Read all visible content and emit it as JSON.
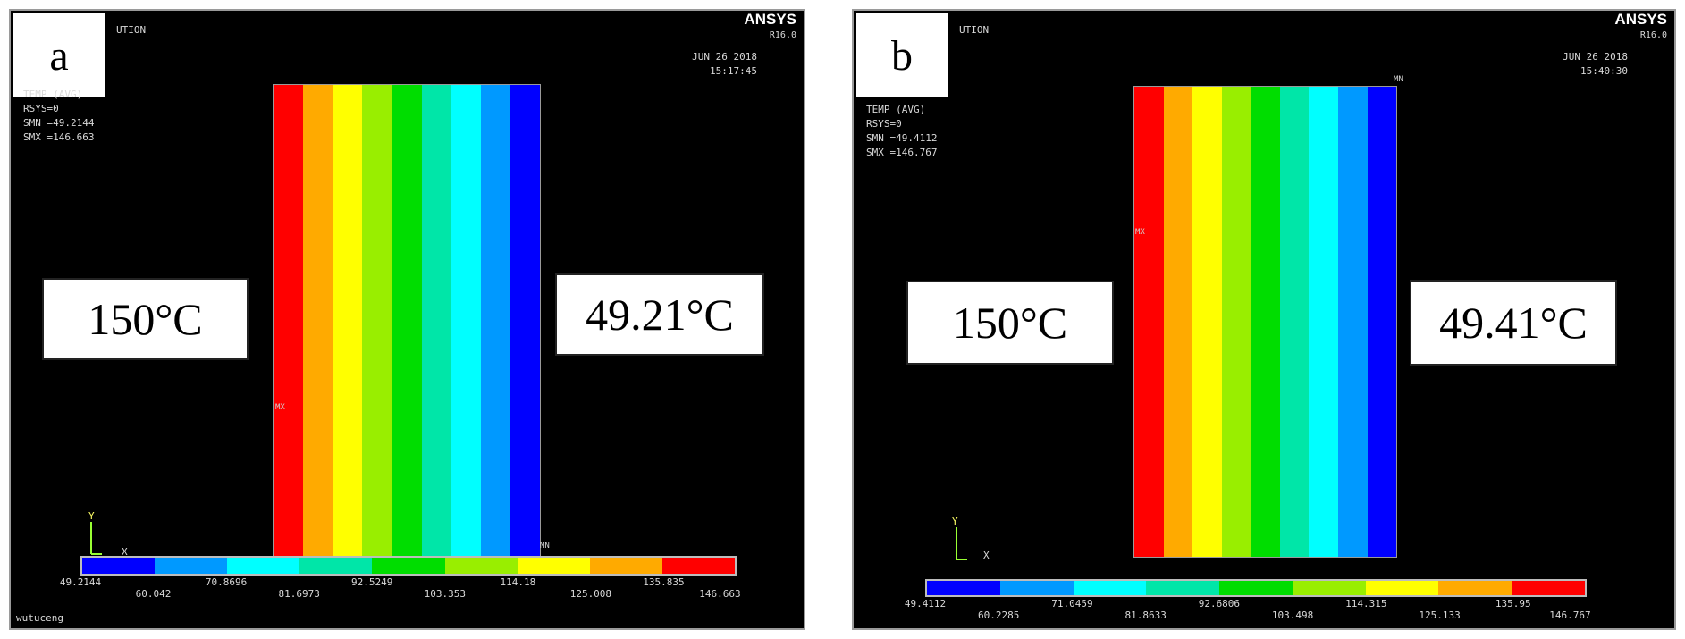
{
  "palette": [
    "#0000ff",
    "#0099ff",
    "#00ffff",
    "#00e6a8",
    "#00dd00",
    "#99ee00",
    "#ffff00",
    "#ffaa00",
    "#ff0000"
  ],
  "panels": [
    {
      "letter": "a",
      "title_fragment": "UTION",
      "brand": "ANSYS",
      "version": "R16.0",
      "date": "JUN 26 2018",
      "time": "15:17:45",
      "info": {
        "line1": "TEMP     (AVG)",
        "line2": "RSYS=0",
        "line3": "SMN =49.2144",
        "line4": "SMX =146.663"
      },
      "hot_label": "150°C",
      "cold_label": "49.21°C",
      "mx_marker": "MX",
      "mn_marker": "MN",
      "axis_y": "Y",
      "axis_x": "X",
      "footer": "wutuceng",
      "legend_top": [
        "49.2144",
        "70.8696",
        "92.5249",
        "114.18",
        "135.835"
      ],
      "legend_bottom": [
        "60.042",
        "81.6973",
        "103.353",
        "125.008",
        "146.663"
      ]
    },
    {
      "letter": "b",
      "title_fragment": "UTION",
      "brand": "ANSYS",
      "version": "R16.0",
      "date": "JUN 26 2018",
      "time": "15:40:30",
      "info": {
        "line1": "TEMP     (AVG)",
        "line2": "RSYS=0",
        "line3": "SMN =49.4112",
        "line4": "SMX =146.767"
      },
      "hot_label": "150°C",
      "cold_label": "49.41°C",
      "mx_marker": "MX",
      "mn_marker": "MN",
      "axis_y": "Y",
      "axis_x": "X",
      "footer": "",
      "legend_top": [
        "49.4112",
        "71.0459",
        "92.6806",
        "114.315",
        "135.95"
      ],
      "legend_bottom": [
        "60.2285",
        "81.8633",
        "103.498",
        "125.133",
        "146.767"
      ]
    }
  ]
}
